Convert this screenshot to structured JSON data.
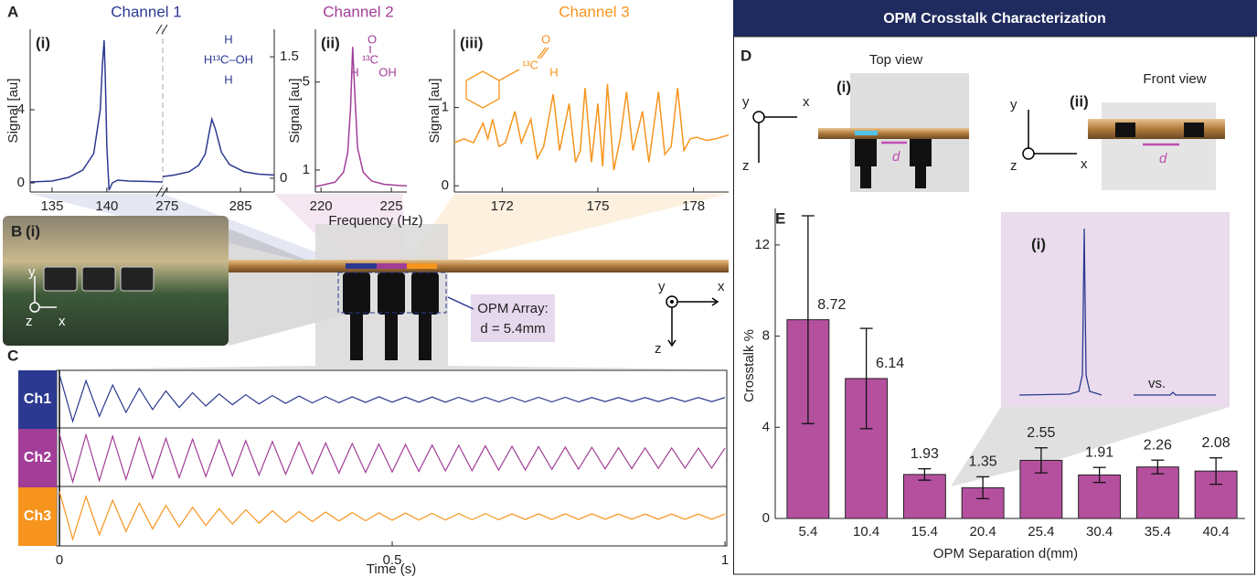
{
  "panels": {
    "A": "A",
    "B": "B",
    "C": "C",
    "D": "D",
    "E": "E"
  },
  "header": "OPM Crosstalk Characterization",
  "frequency_label": "Frequency (Hz)",
  "molecules": {
    "ch1": [
      "H",
      "H¹³C–OH",
      "H"
    ],
    "ch2": [
      "O",
      "¹³C",
      "H",
      "OH"
    ],
    "ch3": [
      "O",
      "¹³C",
      "H"
    ]
  },
  "panel_b": {
    "label": "(i)",
    "y": "y",
    "z": "z",
    "x": "x"
  },
  "array_label": {
    "line1": "OPM Array:",
    "line2": "d = 5.4mm"
  },
  "device_axes": {
    "y": "y",
    "x": "x",
    "z": "z"
  },
  "panel_d": {
    "top_label": "(i)",
    "top_view": "Top view",
    "front_label": "(ii)",
    "front_view": "Front view",
    "d_top": "d",
    "d_front": "d",
    "axes_top": {
      "y": "y",
      "x": "x",
      "z": "z"
    },
    "axes_front": {
      "y": "y",
      "x": "x",
      "z": "z"
    }
  },
  "inset_e": {
    "label": "(i)",
    "vs": "vs."
  },
  "chart_data": [
    {
      "type": "line",
      "title": "Channel 1",
      "label": "(i)",
      "ylabel": "Signal [au]",
      "xlim": [
        133,
        145.1
      ],
      "xticks": [
        135,
        140
      ],
      "x2lim": [
        274.4,
        289.6
      ],
      "x2ticks": [
        275,
        285
      ],
      "ylim": [
        -0.5,
        8.4
      ],
      "yticks": [
        0,
        4
      ],
      "y2lim": [
        -0.17,
        1.84
      ],
      "y2ticks": [
        0,
        1.5
      ],
      "series": [
        {
          "color": "#2b3990",
          "x": [
            133,
            135,
            136.5,
            137.8,
            138.8,
            139.4,
            139.6,
            139.75,
            139.85,
            140.0,
            140.2,
            140.5,
            141,
            142,
            143.5,
            145.1
          ],
          "values": [
            0.05,
            0.1,
            0.3,
            0.7,
            1.6,
            4.0,
            6.5,
            7.8,
            6.0,
            2.0,
            -0.4,
            0.0,
            0.15,
            0.1,
            0.08,
            0.05
          ]
        },
        {
          "color": "#2b3990",
          "axis": "y2",
          "xaxis": "x2",
          "x": [
            274.4,
            276,
            278,
            279.3,
            280.2,
            280.7,
            281.1,
            281.6,
            282.4,
            283.5,
            285.5,
            287.5,
            289.6
          ],
          "values": [
            0.02,
            0.04,
            0.08,
            0.16,
            0.3,
            0.55,
            0.73,
            0.6,
            0.32,
            0.17,
            0.08,
            0.05,
            0.04
          ]
        }
      ]
    },
    {
      "type": "line",
      "title": "Channel 2",
      "label": "(ii)",
      "ylabel": "Signal [au]",
      "xlim": [
        219.6,
        226.1
      ],
      "xticks": [
        220,
        225
      ],
      "ylim": [
        0,
        7.4
      ],
      "yticks": [
        1,
        5
      ],
      "x": [
        219.6,
        220,
        221,
        221.6,
        221.9,
        222.1,
        222.25,
        222.4,
        222.6,
        223,
        223.6,
        224.5,
        225.5,
        226.1
      ],
      "series": [
        {
          "color": "#a23d98",
          "values": [
            0.25,
            0.3,
            0.45,
            0.9,
            1.8,
            3.8,
            6.6,
            4.5,
            2.0,
            0.9,
            0.5,
            0.35,
            0.3,
            0.28
          ]
        }
      ]
    },
    {
      "type": "line",
      "title": "Channel 3",
      "label": "(iii)",
      "ylabel": "Signal [au]",
      "xlim": [
        170.5,
        179.1
      ],
      "xticks": [
        172,
        175,
        178
      ],
      "ylim": [
        -0.08,
        2.0
      ],
      "yticks": [
        0,
        1
      ],
      "x": [
        170.5,
        170.8,
        171.1,
        171.4,
        171.55,
        171.7,
        171.9,
        172.1,
        172.4,
        172.6,
        172.9,
        173.1,
        173.3,
        173.6,
        173.8,
        174.1,
        174.3,
        174.45,
        174.6,
        174.8,
        175.0,
        175.15,
        175.3,
        175.5,
        175.7,
        175.9,
        176.1,
        176.4,
        176.6,
        176.9,
        177.1,
        177.3,
        177.5,
        177.7,
        177.9,
        178.1,
        178.4,
        178.7,
        179.1
      ],
      "series": [
        {
          "color": "#f7941d",
          "values": [
            0.55,
            0.6,
            0.55,
            0.8,
            0.6,
            0.85,
            0.5,
            0.55,
            0.95,
            0.55,
            0.85,
            0.35,
            0.5,
            1.17,
            0.45,
            1.05,
            0.3,
            0.45,
            1.25,
            0.3,
            1.05,
            0.25,
            1.3,
            0.2,
            0.6,
            1.2,
            0.45,
            0.95,
            0.3,
            1.2,
            0.4,
            0.5,
            1.25,
            0.45,
            0.6,
            0.62,
            0.58,
            0.6,
            0.65
          ]
        }
      ]
    },
    {
      "type": "line",
      "xlabel": "Time (s)",
      "xlim": [
        0,
        1
      ],
      "xticks": [
        0,
        0.5,
        1
      ],
      "ylim": [
        -1,
        1
      ],
      "x": [
        0,
        0.02,
        0.04,
        0.06,
        0.08,
        0.1,
        0.12,
        0.14,
        0.16,
        0.18,
        0.2,
        0.22,
        0.24,
        0.26,
        0.28,
        0.3,
        0.32,
        0.34,
        0.36,
        0.38,
        0.4,
        0.42,
        0.44,
        0.46,
        0.48,
        0.5,
        0.52,
        0.54,
        0.56,
        0.58,
        0.6,
        0.62,
        0.64,
        0.66,
        0.68,
        0.7,
        0.72,
        0.74,
        0.76,
        0.78,
        0.8,
        0.82,
        0.84,
        0.86,
        0.88,
        0.9,
        0.92,
        0.94,
        0.96,
        0.98,
        1
      ],
      "series": [
        {
          "name": "Ch1",
          "color": "#2b3990",
          "values": [
            0.98,
            -0.85,
            0.74,
            -0.65,
            0.57,
            -0.5,
            0.44,
            -0.39,
            0.34,
            -0.31,
            0.27,
            -0.25,
            0.22,
            -0.2,
            0.19,
            -0.17,
            0.16,
            -0.15,
            0.14,
            -0.13,
            0.12,
            -0.12,
            0.11,
            -0.11,
            0.11,
            -0.1,
            0.1,
            -0.1,
            0.1,
            -0.1,
            0.09,
            -0.09,
            0.09,
            -0.09,
            0.09,
            -0.09,
            0.09,
            -0.09,
            0.09,
            -0.09,
            0.08,
            -0.08,
            0.08,
            -0.08,
            0.08,
            -0.08,
            0.08,
            -0.08,
            0.08,
            -0.08,
            0.08
          ]
        },
        {
          "name": "Ch2",
          "color": "#a23d98",
          "values": [
            0.95,
            -0.93,
            0.91,
            -0.88,
            0.86,
            -0.83,
            0.81,
            -0.79,
            0.77,
            -0.76,
            0.74,
            -0.72,
            0.71,
            -0.69,
            0.68,
            -0.66,
            0.65,
            -0.63,
            0.62,
            -0.61,
            0.59,
            -0.58,
            0.57,
            -0.56,
            0.55,
            -0.54,
            0.53,
            -0.52,
            0.51,
            -0.5,
            0.5,
            -0.49,
            0.48,
            -0.47,
            0.46,
            -0.46,
            0.45,
            -0.44,
            0.43,
            -0.43,
            0.42,
            -0.42,
            0.41,
            -0.41,
            0.4,
            -0.4,
            0.4,
            -0.39,
            0.39,
            -0.39,
            0.39
          ]
        },
        {
          "name": "Ch3",
          "color": "#f7941d",
          "values": [
            0.98,
            -0.88,
            0.79,
            -0.71,
            0.64,
            -0.58,
            0.53,
            -0.48,
            0.44,
            -0.4,
            0.37,
            -0.34,
            0.31,
            -0.29,
            0.27,
            -0.25,
            0.23,
            -0.22,
            0.2,
            -0.19,
            0.18,
            -0.17,
            0.16,
            -0.16,
            0.15,
            -0.14,
            0.14,
            -0.13,
            0.13,
            -0.13,
            0.12,
            -0.12,
            0.12,
            -0.12,
            0.11,
            -0.11,
            0.11,
            -0.11,
            0.11,
            -0.11,
            0.11,
            -0.1,
            0.1,
            -0.1,
            0.1,
            -0.1,
            0.1,
            -0.1,
            0.1,
            -0.1,
            0.1
          ]
        }
      ]
    },
    {
      "type": "bar",
      "ylabel": "Crosstalk %",
      "xlabel": "OPM Separation d(mm)",
      "categories": [
        "5.4",
        "10.4",
        "15.4",
        "20.4",
        "25.4",
        "30.4",
        "35.4",
        "40.4"
      ],
      "values": [
        8.72,
        6.14,
        1.93,
        1.35,
        2.55,
        1.91,
        2.26,
        2.08
      ],
      "errors": [
        4.56,
        2.2,
        0.25,
        0.48,
        0.55,
        0.33,
        0.3,
        0.58
      ],
      "color": "#b5509f",
      "ylim": [
        0,
        13.6
      ],
      "yticks": [
        0,
        4,
        8,
        12
      ]
    }
  ]
}
